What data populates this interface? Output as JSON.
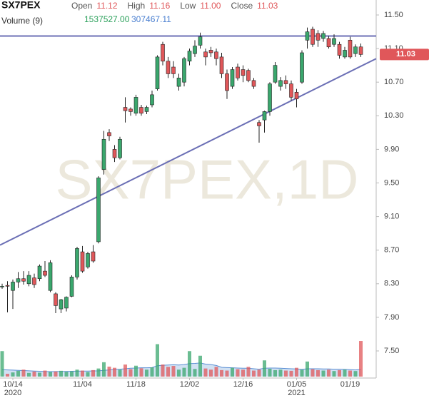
{
  "chart_data": {
    "type": "candlestick",
    "title": "SX7PEX",
    "watermark": "SX7PEX,1D",
    "legend": [
      {
        "label": "Open",
        "value": 11.12
      },
      {
        "label": "High",
        "value": 11.16
      },
      {
        "label": "Low",
        "value": {
          "value": 11,
          "label": "11.00"
        }
      },
      {
        "label": "Close",
        "value": 11.03
      }
    ],
    "volume_label": "Volume (9)",
    "volume_stats": [
      {
        "value": 1537527,
        "label": "1537527.00"
      },
      {
        "value": 307467.11,
        "label": "307467.11"
      }
    ],
    "last_price": 11.03,
    "up_color": "#3aa76d",
    "down_color": "#e0575a",
    "ylim": [
      7.2,
      11.676
    ],
    "yticks": [
      {
        "value": 7.5,
        "label": "7.50"
      },
      {
        "value": 7.9,
        "label": "7.90"
      },
      {
        "value": 8.3,
        "label": "8.30"
      },
      {
        "value": 8.7,
        "label": "8.70"
      },
      {
        "value": 9.1,
        "label": "9.10"
      },
      {
        "value": 9.5,
        "label": "9.50"
      },
      {
        "value": 9.9,
        "label": "9.90"
      },
      {
        "value": 10.3,
        "label": "10.30"
      },
      {
        "value": 10.7,
        "label": "10.70"
      },
      {
        "value": 11.1,
        "label": "11.10"
      },
      {
        "value": 11.5,
        "label": "11.50"
      }
    ],
    "categories": [
      null,
      null,
      "10/14",
      null,
      null,
      null,
      null,
      null,
      null,
      null,
      null,
      null,
      null,
      null,
      null,
      "11/04",
      null,
      null,
      null,
      null,
      null,
      null,
      null,
      null,
      null,
      "11/18",
      null,
      null,
      null,
      null,
      null,
      null,
      null,
      null,
      null,
      "12/02",
      null,
      null,
      null,
      null,
      null,
      null,
      null,
      null,
      null,
      "12/16",
      null,
      null,
      null,
      null,
      null,
      null,
      null,
      null,
      null,
      "01/05",
      null,
      null,
      null,
      null,
      null,
      null,
      null,
      null,
      null,
      "01/19",
      null,
      null
    ],
    "x_sublabels": [
      null,
      null,
      "2020",
      null,
      null,
      null,
      null,
      null,
      null,
      null,
      null,
      null,
      null,
      null,
      null,
      null,
      null,
      null,
      null,
      null,
      null,
      null,
      null,
      null,
      null,
      null,
      null,
      null,
      null,
      null,
      null,
      null,
      null,
      null,
      null,
      null,
      null,
      null,
      null,
      null,
      null,
      null,
      null,
      null,
      null,
      null,
      null,
      null,
      null,
      null,
      null,
      null,
      null,
      null,
      null,
      "2021",
      null,
      null,
      null,
      null,
      null,
      null,
      null,
      null,
      null,
      null,
      null,
      null
    ],
    "open": [
      8.27,
      8.28,
      8.22,
      8.32,
      8.36,
      8.3,
      8.37,
      8.36,
      8.45,
      8.22,
      8.18,
      8.0,
      8.01,
      8.15,
      8.38,
      8.68,
      8.5,
      8.68,
      8.8,
      9.66,
      10.1,
      9.9,
      9.8,
      10.4,
      10.38,
      10.33,
      10.4,
      10.35,
      10.43,
      10.62,
      11.15,
      10.95,
      10.88,
      10.65,
      10.7,
      10.95,
      11.04,
      11.14,
      11.06,
      11.08,
      11.06,
      11.0,
      10.8,
      10.65,
      10.88,
      10.85,
      10.84,
      10.72,
      10.22,
      10.25,
      10.35,
      10.7,
      10.65,
      10.72,
      10.68,
      10.58,
      10.7,
      11.2,
      11.33,
      11.28,
      11.22,
      11.22,
      11.15,
      11.15,
      11.0,
      11.2,
      11.04,
      11.12
    ],
    "high": [
      8.3,
      8.33,
      8.35,
      8.44,
      8.45,
      8.45,
      8.42,
      8.53,
      8.57,
      8.58,
      8.2,
      8.12,
      8.15,
      8.4,
      8.74,
      8.75,
      8.68,
      8.76,
      9.58,
      10.12,
      10.14,
      9.95,
      10.05,
      10.52,
      10.4,
      10.55,
      10.43,
      10.42,
      10.6,
      11.02,
      11.18,
      11.0,
      10.95,
      10.8,
      11.0,
      11.1,
      11.2,
      11.29,
      11.1,
      11.12,
      11.1,
      11.05,
      10.85,
      10.88,
      10.92,
      10.9,
      10.86,
      10.75,
      10.25,
      10.36,
      10.7,
      10.94,
      10.76,
      10.78,
      10.72,
      10.62,
      11.08,
      11.35,
      11.36,
      11.32,
      11.31,
      11.25,
      11.27,
      11.18,
      11.12,
      11.24,
      11.15,
      11.16
    ],
    "low": [
      8.24,
      7.96,
      8.0,
      8.25,
      8.29,
      8.27,
      8.25,
      8.33,
      8.38,
      8.2,
      7.95,
      7.95,
      7.97,
      8.14,
      8.35,
      8.43,
      8.48,
      8.55,
      8.78,
      9.6,
      10.0,
      9.75,
      9.78,
      10.22,
      10.3,
      10.3,
      10.3,
      10.32,
      10.4,
      10.6,
      10.9,
      10.75,
      10.75,
      10.6,
      10.65,
      10.9,
      11.0,
      11.1,
      10.9,
      11.0,
      10.9,
      10.75,
      10.5,
      10.62,
      10.72,
      10.7,
      10.7,
      10.62,
      9.98,
      10.1,
      10.3,
      10.68,
      10.6,
      10.62,
      10.48,
      10.4,
      10.68,
      11.1,
      11.12,
      11.12,
      11.18,
      11.1,
      11.12,
      10.98,
      10.98,
      10.98,
      11.0,
      11.0
    ],
    "close": [
      8.27,
      8.27,
      8.32,
      8.36,
      8.33,
      8.4,
      8.29,
      8.51,
      8.4,
      8.55,
      8.04,
      8.11,
      8.14,
      8.38,
      8.72,
      8.45,
      8.66,
      8.57,
      9.56,
      10.02,
      10.06,
      9.8,
      10.02,
      10.36,
      10.35,
      10.52,
      10.33,
      10.4,
      10.55,
      11.0,
      10.95,
      10.8,
      10.8,
      10.75,
      10.98,
      11.07,
      11.13,
      11.24,
      11.0,
      11.05,
      10.98,
      10.8,
      10.6,
      10.85,
      10.75,
      10.78,
      10.72,
      10.65,
      10.18,
      10.35,
      10.68,
      10.9,
      10.72,
      10.68,
      10.52,
      10.5,
      11.05,
      11.3,
      11.15,
      11.2,
      11.28,
      11.12,
      11.22,
      11.02,
      11.08,
      11.0,
      11.12,
      11.03
    ],
    "volume": [
      1100000,
      120000,
      180000,
      250000,
      300000,
      160000,
      220000,
      170000,
      260000,
      200000,
      220000,
      250000,
      210000,
      230000,
      300000,
      260000,
      200000,
      280000,
      350000,
      620000,
      430000,
      380000,
      300000,
      520000,
      320000,
      470000,
      360000,
      300000,
      400000,
      1400000,
      520000,
      420000,
      460000,
      300000,
      380000,
      1100000,
      330000,
      900000,
      350000,
      300000,
      420000,
      280000,
      260000,
      380000,
      320000,
      300000,
      420000,
      260000,
      300000,
      700000,
      340000,
      280000,
      300000,
      260000,
      250000,
      380000,
      300000,
      650000,
      320000,
      280000,
      260000,
      300000,
      240000,
      280000,
      300000,
      260000,
      240000,
      1537527
    ],
    "volume_ma": [
      300000,
      290000,
      280000,
      270000,
      260000,
      250000,
      240000,
      230000,
      220000,
      215000,
      220000,
      225000,
      225000,
      230000,
      235000,
      240000,
      240000,
      245000,
      250000,
      270000,
      290000,
      310000,
      320000,
      340000,
      360000,
      370000,
      380000,
      380000,
      390000,
      470000,
      490000,
      500000,
      510000,
      500000,
      520000,
      560000,
      570000,
      590000,
      540000,
      520000,
      480000,
      400000,
      390000,
      380000,
      370000,
      360000,
      360000,
      340000,
      320000,
      360000,
      370000,
      370000,
      360000,
      350000,
      340000,
      330000,
      310000,
      340000,
      340000,
      340000,
      330000,
      330000,
      320000,
      320000,
      310000,
      300000,
      290000,
      307467.11
    ],
    "vlim": [
      0,
      1600000
    ],
    "ma_color": "#5b8fd4",
    "trend_lines": [
      {
        "start": 8.76,
        "end": 10.98,
        "color": "#6b6fb5"
      },
      {
        "start": 11.25,
        "end": 11.25,
        "color": "#6b6fb5"
      }
    ]
  }
}
